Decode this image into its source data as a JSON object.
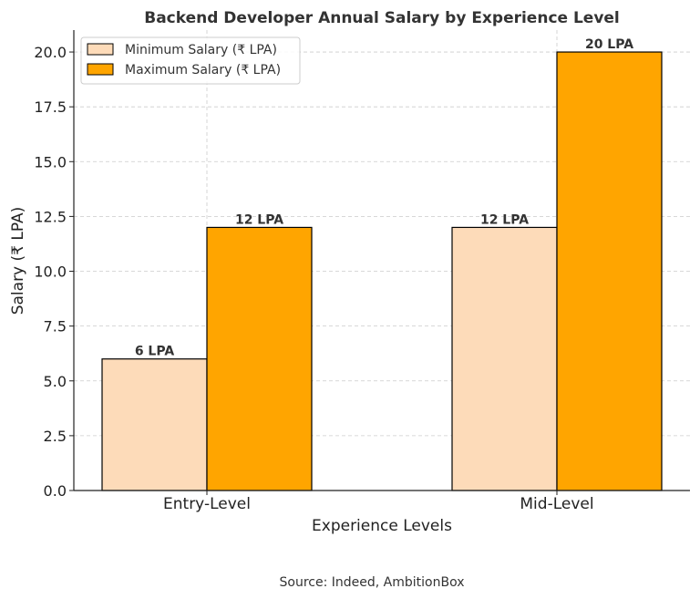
{
  "chart_data": {
    "type": "bar",
    "title": "Backend Developer Annual Salary by Experience Level",
    "xlabel": "Experience Levels",
    "ylabel": "Salary (₹ LPA)",
    "categories": [
      "Entry-Level",
      "Mid-Level"
    ],
    "series": [
      {
        "name": "Minimum Salary (₹ LPA)",
        "values": [
          6,
          12
        ],
        "labels": [
          "6 LPA",
          "12 LPA"
        ],
        "color": "#FDDBB9"
      },
      {
        "name": "Maximum Salary (₹ LPA)",
        "values": [
          12,
          20
        ],
        "labels": [
          "12 LPA",
          "20 LPA"
        ],
        "color": "#FFA500"
      }
    ],
    "ylim": [
      0,
      21
    ],
    "yticks": [
      "0.0",
      "2.5",
      "5.0",
      "7.5",
      "10.0",
      "12.5",
      "15.0",
      "17.5",
      "20.0"
    ],
    "grid": true,
    "legend_position": "top-left"
  },
  "source": "Source: Indeed, AmbitionBox"
}
